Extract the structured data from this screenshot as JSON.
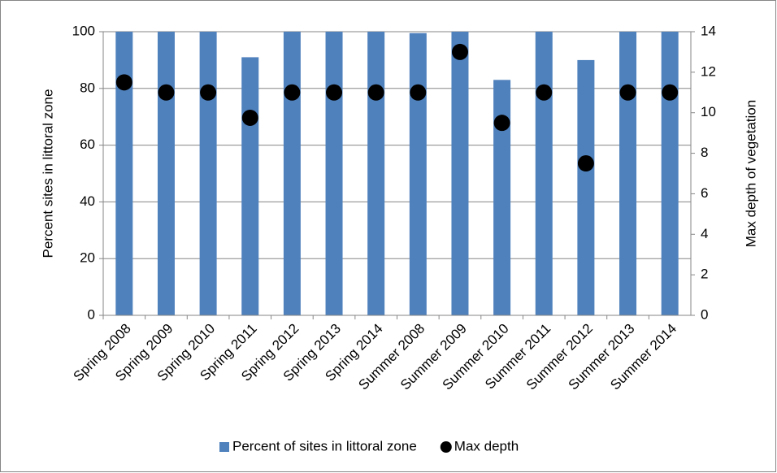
{
  "chart_data": {
    "type": "bar",
    "categories": [
      "Spring 2008",
      "Spring 2009",
      "Spring 2010",
      "Spring 2011",
      "Spring 2012",
      "Spring 2013",
      "Spring 2014",
      "Summer 2008",
      "Summer 2009",
      "Summer 2010",
      "Summer 2011",
      "Summer 2012",
      "Summer 2013",
      "Summer 2014"
    ],
    "series": [
      {
        "name": "Percent of sites in littoral zone",
        "type": "bar",
        "color": "#4f81bd",
        "values": [
          100,
          100,
          100,
          91,
          100,
          100,
          100,
          99.5,
          100,
          83,
          100,
          90,
          100,
          100
        ]
      },
      {
        "name": "Max depth",
        "type": "scatter",
        "axis": "y2",
        "color": "#000000",
        "values": [
          11.5,
          11,
          11,
          9.75,
          11,
          11,
          11,
          11,
          13,
          9.5,
          11,
          7.5,
          11,
          11
        ]
      }
    ],
    "ylabel": "Percent sites in littoral zone",
    "y2label": "Max depth of vegetation",
    "ylim": [
      0,
      100
    ],
    "yticks": [
      0,
      20,
      40,
      60,
      80,
      100
    ],
    "y2lim": [
      0,
      14
    ],
    "y2ticks": [
      0,
      2,
      4,
      6,
      8,
      10,
      12,
      14
    ],
    "grid": true,
    "legend": "bottom"
  }
}
